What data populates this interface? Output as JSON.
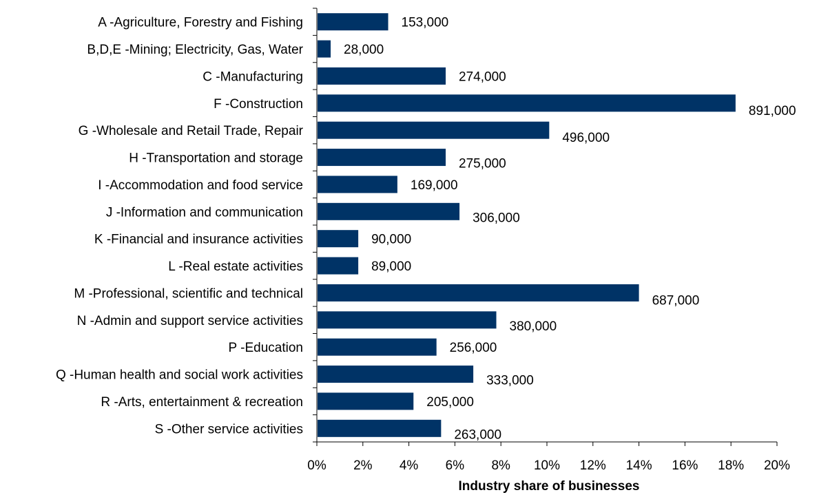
{
  "chart_data": {
    "type": "bar",
    "orientation": "horizontal",
    "bar_color": "#003366",
    "xlabel": "Industry share of businesses",
    "xlim": [
      0,
      20
    ],
    "x_ticks": [
      "0%",
      "2%",
      "4%",
      "6%",
      "8%",
      "10%",
      "12%",
      "14%",
      "16%",
      "18%",
      "20%"
    ],
    "grid": false,
    "categories": [
      "A -Agriculture, Forestry and Fishing",
      "B,D,E -Mining; Electricity, Gas, Water",
      "C -Manufacturing",
      "F -Construction",
      "G -Wholesale and Retail Trade, Repair",
      "H -Transportation and storage",
      "I -Accommodation and food service",
      "J -Information and communication",
      "K -Financial and insurance activities",
      "L -Real estate activities",
      "M -Professional, scientific and technical",
      "N -Admin and support service activities",
      "P -Education",
      "Q -Human health and social work activities",
      "R -Arts, entertainment & recreation",
      "S -Other service activities"
    ],
    "values": [
      3.1,
      0.6,
      5.6,
      18.2,
      10.1,
      5.6,
      3.5,
      6.2,
      1.8,
      1.8,
      14.0,
      7.8,
      5.2,
      6.8,
      4.2,
      5.4
    ],
    "data_labels": [
      "153,000",
      "28,000",
      "274,000",
      "891,000",
      "496,000",
      "275,000",
      "169,000",
      "306,000",
      "90,000",
      "89,000",
      "687,000",
      "380,000",
      "256,000",
      "333,000",
      "205,000",
      "263,000"
    ]
  }
}
